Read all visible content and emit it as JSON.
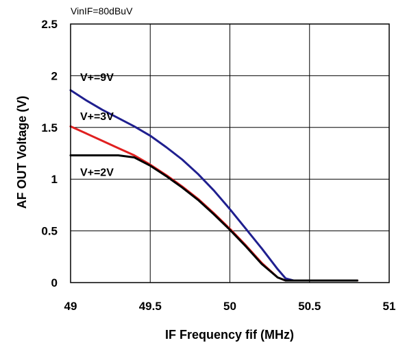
{
  "chart_data": {
    "type": "line",
    "condition_label": "VinIF=80dBuV",
    "xlabel": "IF Frequency fif (MHz)",
    "ylabel": "AF OUT Voltage (V)",
    "xlim": [
      49,
      51
    ],
    "ylim": [
      0,
      2.5
    ],
    "x_ticks": [
      49,
      49.5,
      50,
      50.5,
      51
    ],
    "x_tick_labels": [
      "49",
      "49.5",
      "50",
      "50.5",
      "51"
    ],
    "y_ticks": [
      0,
      0.5,
      1,
      1.5,
      2,
      2.5
    ],
    "y_tick_labels": [
      "0",
      "0.5",
      "1",
      "1.5",
      "2",
      "2.5"
    ],
    "grid": true,
    "series": [
      {
        "name": "V+=9V",
        "color": "#1f1f8f",
        "x": [
          49.0,
          49.1,
          49.2,
          49.3,
          49.4,
          49.5,
          49.6,
          49.7,
          49.8,
          49.9,
          50.0,
          50.1,
          50.2,
          50.3,
          50.35,
          50.4,
          50.5,
          50.6,
          50.7,
          50.8
        ],
        "y": [
          1.86,
          1.76,
          1.67,
          1.59,
          1.51,
          1.42,
          1.31,
          1.19,
          1.05,
          0.89,
          0.71,
          0.52,
          0.33,
          0.13,
          0.04,
          0.02,
          0.02,
          0.02,
          0.02,
          0.02
        ]
      },
      {
        "name": "V+=3V",
        "color": "#e02020",
        "x": [
          49.0,
          49.1,
          49.2,
          49.3,
          49.4,
          49.5,
          49.6,
          49.7,
          49.8,
          49.9,
          50.0,
          50.1,
          50.2,
          50.3,
          50.35,
          50.4,
          50.5,
          50.6,
          50.7,
          50.8
        ],
        "y": [
          1.51,
          1.44,
          1.37,
          1.3,
          1.23,
          1.14,
          1.04,
          0.93,
          0.81,
          0.67,
          0.52,
          0.36,
          0.19,
          0.05,
          0.02,
          0.02,
          0.02,
          0.02,
          0.02,
          0.02
        ]
      },
      {
        "name": "V+=2V",
        "color": "#000000",
        "x": [
          49.0,
          49.1,
          49.2,
          49.3,
          49.4,
          49.5,
          49.6,
          49.7,
          49.8,
          49.9,
          50.0,
          50.1,
          50.2,
          50.3,
          50.35,
          50.4,
          50.5,
          50.6,
          50.7,
          50.8
        ],
        "y": [
          1.23,
          1.23,
          1.23,
          1.23,
          1.21,
          1.13,
          1.03,
          0.92,
          0.8,
          0.66,
          0.51,
          0.35,
          0.18,
          0.05,
          0.02,
          0.02,
          0.02,
          0.02,
          0.02,
          0.02
        ]
      }
    ],
    "annotations": [
      {
        "text": "V+=9V",
        "x": 49.06,
        "y": 1.95
      },
      {
        "text": "V+=3V",
        "x": 49.06,
        "y": 1.57
      },
      {
        "text": "V+=2V",
        "x": 49.06,
        "y": 1.03
      }
    ]
  }
}
